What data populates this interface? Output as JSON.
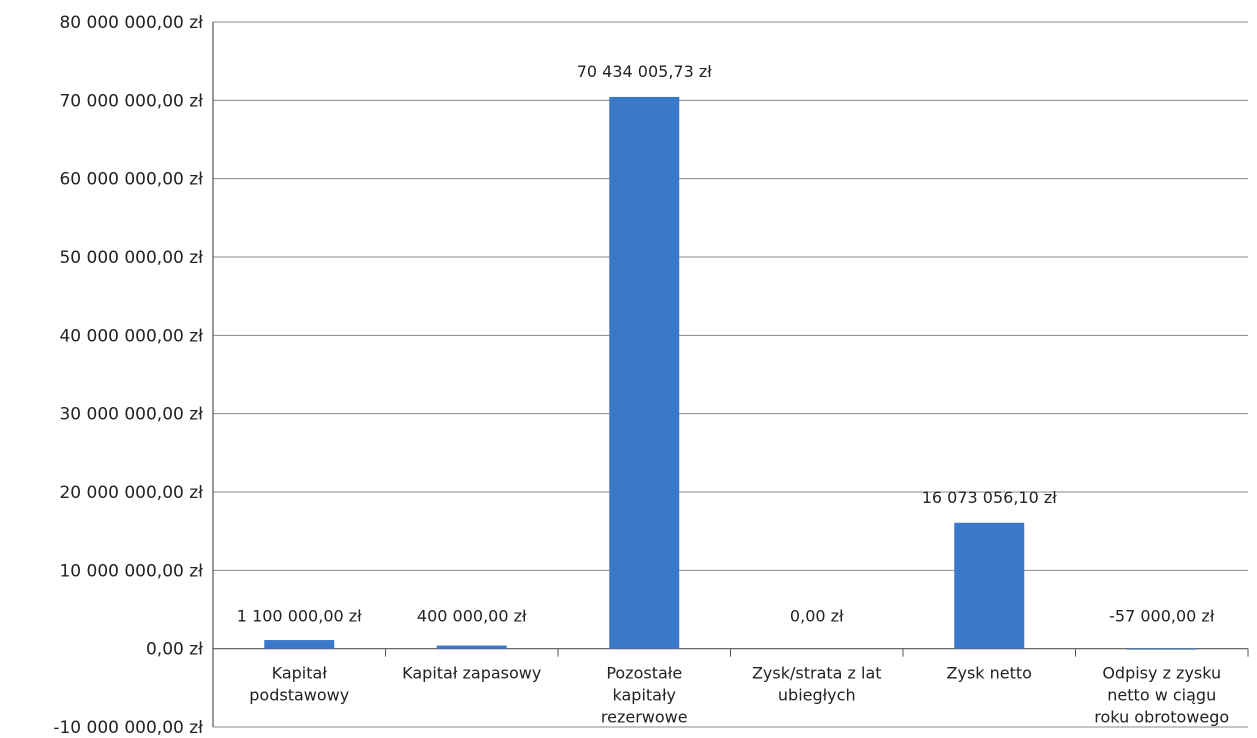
{
  "chart_data": {
    "type": "bar",
    "categories": [
      [
        "Kapitał",
        "podstawowy"
      ],
      [
        "Kapitał zapasowy"
      ],
      [
        "Pozostałe",
        "kapitały",
        "rezerwowe"
      ],
      [
        "Zysk/strata z lat",
        "ubiegłych"
      ],
      [
        "Zysk netto"
      ],
      [
        "Odpisy z zysku",
        "netto w ciągu",
        "roku obrotowego"
      ]
    ],
    "values": [
      1100000,
      400000,
      70434005.73,
      0,
      16073056.1,
      -57000
    ],
    "data_labels": [
      "1 100 000,00 zł",
      "400 000,00 zł",
      "70 434 005,73 zł",
      "0,00 zł",
      "16 073 056,10 zł",
      "-57 000,00 zł"
    ],
    "ylim": [
      -10000000,
      80000000
    ],
    "yticks": [
      -10000000,
      0,
      10000000,
      20000000,
      30000000,
      40000000,
      50000000,
      60000000,
      70000000,
      80000000
    ],
    "ytick_labels": [
      "-10 000 000,00 zł",
      "0,00 zł",
      "10 000 000,00 zł",
      "20 000 000,00 zł",
      "30 000 000,00 zł",
      "40 000 000,00 zł",
      "50 000 000,00 zł",
      "60 000 000,00 zł",
      "70 000 000,00 zł",
      "80 000 000,00 zł"
    ],
    "grid": true,
    "title": "",
    "xlabel": "",
    "ylabel": "",
    "bar_color": "#3a78c9"
  }
}
